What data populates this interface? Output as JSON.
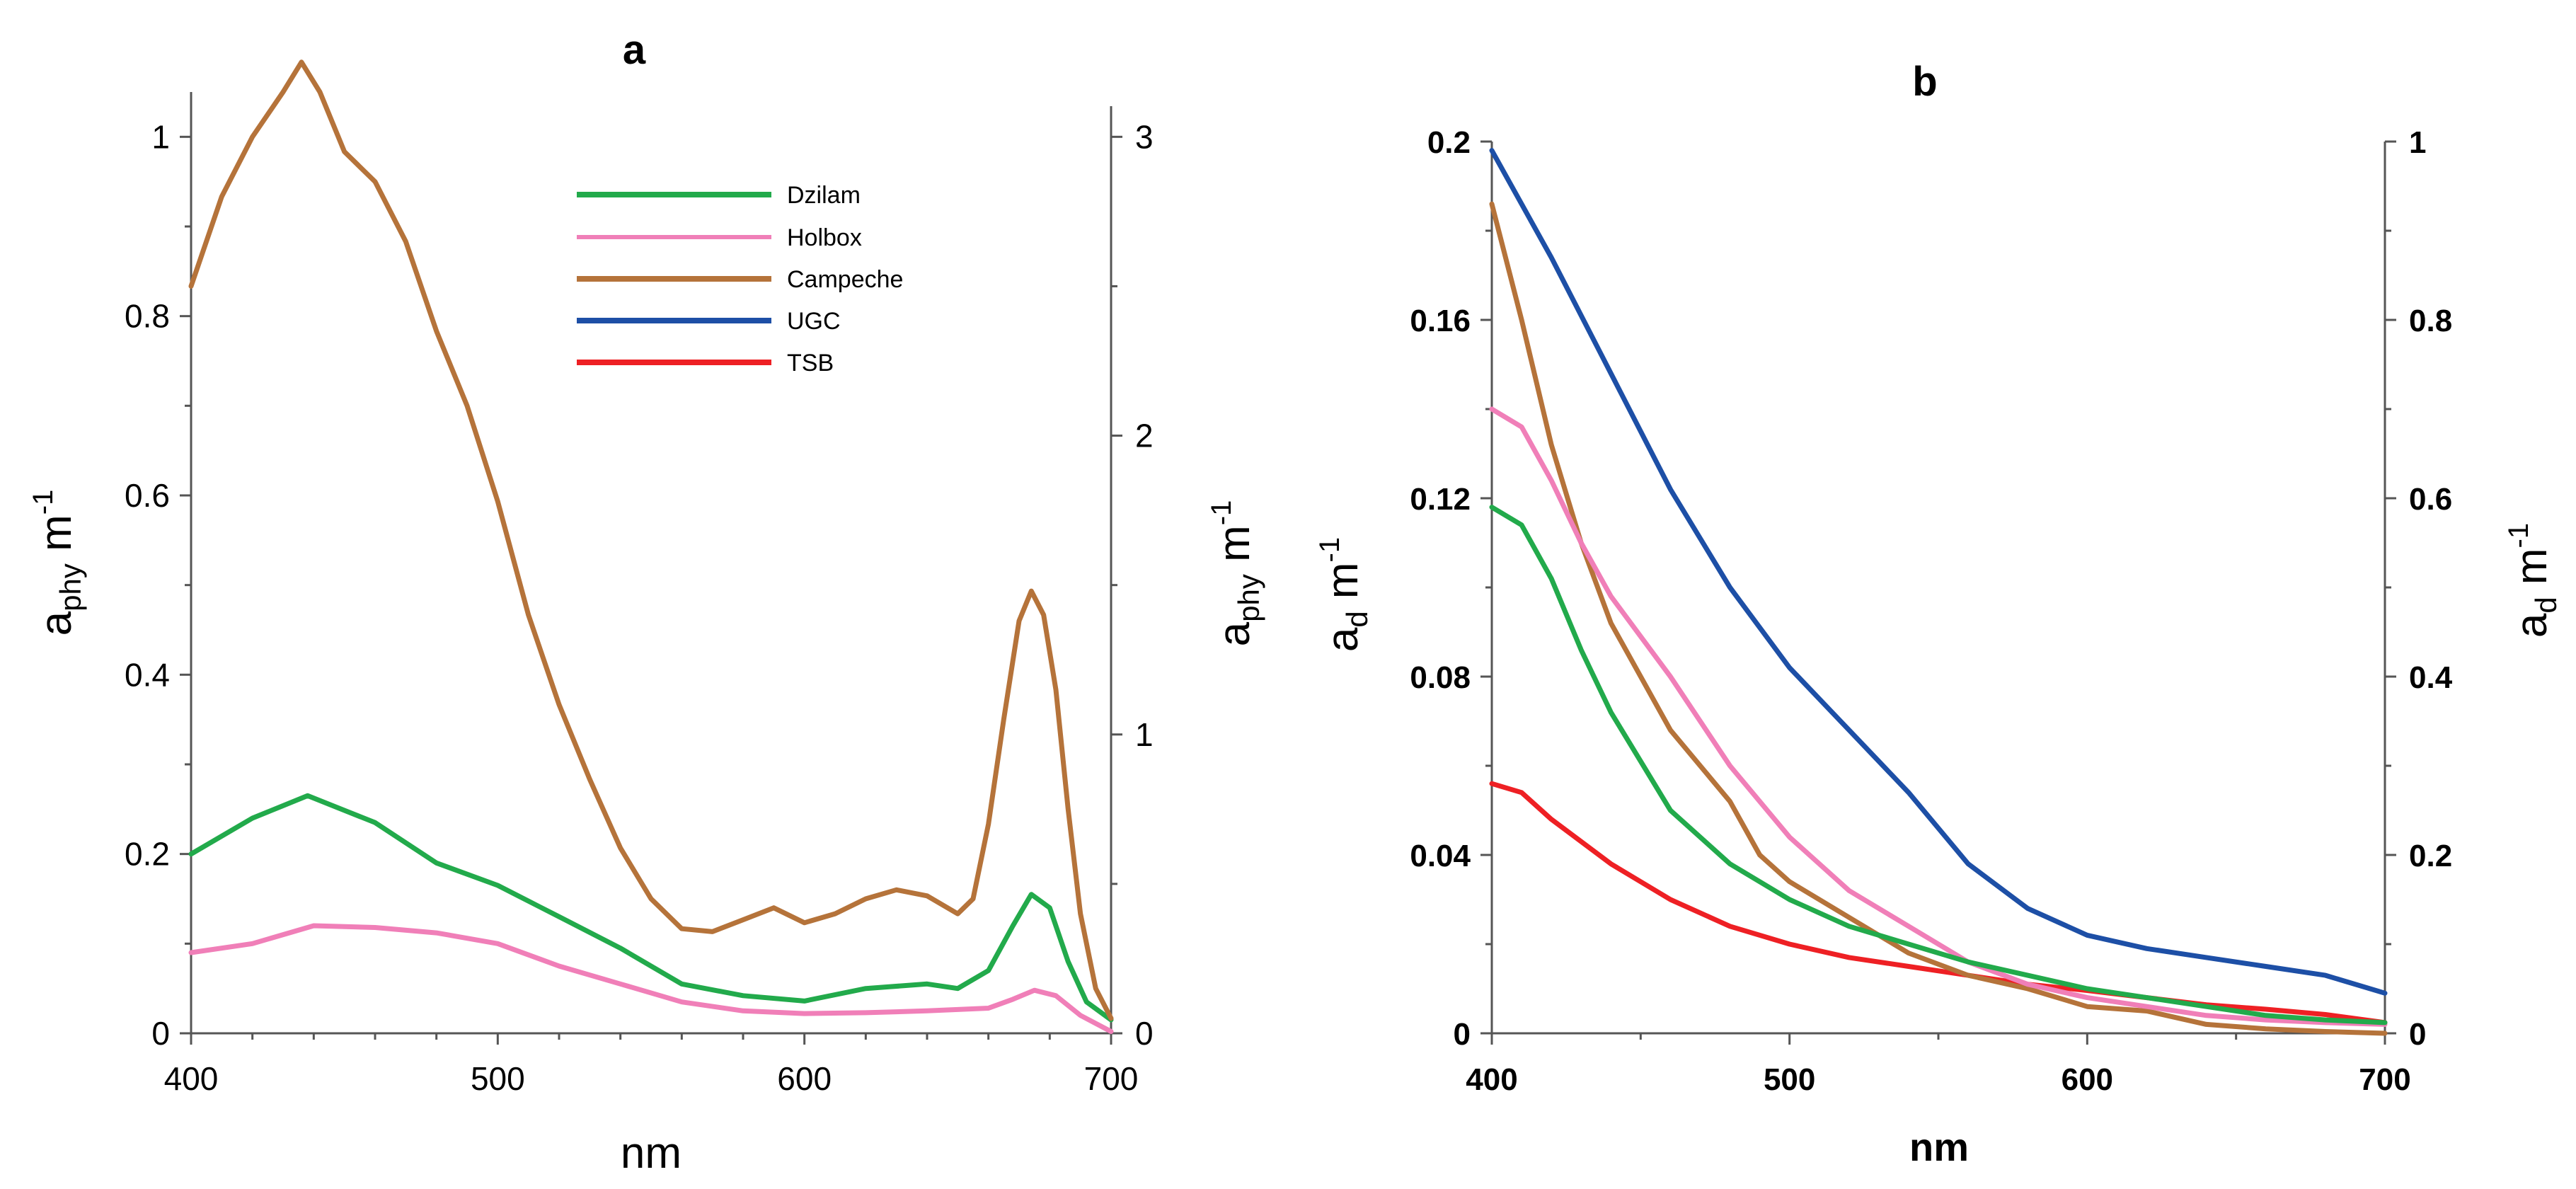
{
  "chart_data": [
    {
      "panel": "a",
      "type": "line",
      "title": "a",
      "xlabel": "nm",
      "ylabel_left": "a_phy m^-1",
      "ylabel_right": "a_phy m^-1",
      "xlim": [
        400,
        700
      ],
      "ylim_left": [
        0,
        1.05
      ],
      "ylim_right": [
        0,
        3.15
      ],
      "xticks": [
        "400",
        "500",
        "600",
        "700"
      ],
      "yticks_left": [
        "0",
        "0.2",
        "0.4",
        "0.6",
        "0.8",
        "1"
      ],
      "yticks_right": [
        "0",
        "1",
        "2",
        "3"
      ],
      "legend": {
        "position": "top-center",
        "entries": [
          "Dzilam",
          "Holbox",
          "Campeche",
          "UGC",
          "TSB"
        ]
      },
      "series": [
        {
          "name": "Dzilam",
          "color": "#22aa4b",
          "axis": "left",
          "x": [
            400,
            420,
            438,
            460,
            480,
            500,
            520,
            540,
            560,
            580,
            600,
            620,
            640,
            650,
            660,
            668,
            674,
            680,
            686,
            692,
            700
          ],
          "y": [
            0.2,
            0.24,
            0.265,
            0.235,
            0.19,
            0.165,
            0.13,
            0.095,
            0.055,
            0.042,
            0.036,
            0.05,
            0.055,
            0.05,
            0.07,
            0.12,
            0.155,
            0.14,
            0.08,
            0.035,
            0.015
          ]
        },
        {
          "name": "Holbox",
          "color": "#f07fb8",
          "axis": "left",
          "x": [
            400,
            420,
            440,
            460,
            480,
            500,
            520,
            540,
            560,
            580,
            600,
            620,
            640,
            660,
            668,
            675,
            682,
            690,
            700
          ],
          "y": [
            0.09,
            0.1,
            0.12,
            0.118,
            0.112,
            0.1,
            0.075,
            0.055,
            0.035,
            0.025,
            0.022,
            0.023,
            0.025,
            0.028,
            0.038,
            0.048,
            0.042,
            0.02,
            0.002
          ]
        },
        {
          "name": "Campeche",
          "color": "#b5733a",
          "axis": "right",
          "x": [
            400,
            410,
            420,
            430,
            436,
            442,
            450,
            460,
            470,
            480,
            490,
            500,
            510,
            520,
            530,
            540,
            550,
            560,
            570,
            580,
            590,
            600,
            610,
            620,
            630,
            640,
            650,
            655,
            660,
            665,
            670,
            674,
            678,
            682,
            686,
            690,
            695,
            700
          ],
          "y": [
            2.5,
            2.8,
            3.0,
            3.15,
            3.25,
            3.15,
            2.95,
            2.85,
            2.65,
            2.35,
            2.1,
            1.78,
            1.4,
            1.1,
            0.85,
            0.62,
            0.45,
            0.35,
            0.34,
            0.38,
            0.42,
            0.37,
            0.4,
            0.45,
            0.48,
            0.46,
            0.4,
            0.45,
            0.7,
            1.05,
            1.38,
            1.48,
            1.4,
            1.15,
            0.75,
            0.4,
            0.15,
            0.05
          ]
        }
      ]
    },
    {
      "panel": "b",
      "type": "line",
      "title": "b",
      "xlabel": "nm",
      "ylabel_left": "a_d m^-1",
      "ylabel_right": "a_d m^-1",
      "xlim": [
        400,
        700
      ],
      "ylim_left": [
        0,
        0.2
      ],
      "ylim_right": [
        0,
        1.0
      ],
      "xticks": [
        "400",
        "500",
        "600",
        "700"
      ],
      "yticks_left": [
        "0",
        "0.04",
        "0.08",
        "0.12",
        "0.16",
        "0.2"
      ],
      "yticks_right": [
        "0",
        "0.2",
        "0.4",
        "0.6",
        "0.8",
        "1"
      ],
      "series": [
        {
          "name": "UGC",
          "color": "#1d4fa6",
          "axis": "right",
          "x": [
            400,
            420,
            440,
            460,
            480,
            500,
            520,
            540,
            560,
            580,
            600,
            620,
            640,
            660,
            680,
            700
          ],
          "y": [
            0.99,
            0.87,
            0.74,
            0.61,
            0.5,
            0.41,
            0.34,
            0.27,
            0.19,
            0.14,
            0.11,
            0.095,
            0.085,
            0.075,
            0.065,
            0.045
          ]
        },
        {
          "name": "TSB",
          "color": "#ee2024",
          "axis": "right",
          "x": [
            400,
            410,
            420,
            440,
            460,
            480,
            500,
            520,
            540,
            560,
            580,
            600,
            620,
            640,
            660,
            680,
            700
          ],
          "y": [
            0.28,
            0.27,
            0.24,
            0.19,
            0.15,
            0.12,
            0.1,
            0.085,
            0.075,
            0.065,
            0.055,
            0.048,
            0.04,
            0.032,
            0.027,
            0.021,
            0.012
          ]
        },
        {
          "name": "Campeche",
          "color": "#b5733a",
          "axis": "right",
          "x": [
            400,
            410,
            420,
            430,
            440,
            460,
            480,
            490,
            500,
            520,
            540,
            560,
            580,
            600,
            620,
            640,
            660,
            680,
            700
          ],
          "y": [
            0.93,
            0.8,
            0.66,
            0.55,
            0.46,
            0.34,
            0.26,
            0.2,
            0.17,
            0.13,
            0.09,
            0.065,
            0.05,
            0.03,
            0.025,
            0.01,
            0.005,
            0.002,
            0.0
          ]
        },
        {
          "name": "Holbox",
          "color": "#f07fb8",
          "axis": "right",
          "x": [
            400,
            410,
            420,
            430,
            440,
            460,
            480,
            500,
            520,
            540,
            560,
            580,
            600,
            620,
            640,
            660,
            680,
            700
          ],
          "y": [
            0.7,
            0.68,
            0.62,
            0.55,
            0.49,
            0.4,
            0.3,
            0.22,
            0.16,
            0.12,
            0.08,
            0.055,
            0.04,
            0.03,
            0.02,
            0.015,
            0.012,
            0.01
          ]
        },
        {
          "name": "Dzilam",
          "color": "#22aa4b",
          "axis": "right",
          "x": [
            400,
            410,
            420,
            430,
            440,
            460,
            480,
            500,
            520,
            540,
            560,
            580,
            600,
            620,
            640,
            660,
            680,
            700
          ],
          "y": [
            0.59,
            0.57,
            0.51,
            0.43,
            0.36,
            0.25,
            0.19,
            0.15,
            0.12,
            0.1,
            0.08,
            0.065,
            0.05,
            0.04,
            0.03,
            0.02,
            0.015,
            0.012
          ]
        }
      ]
    }
  ]
}
